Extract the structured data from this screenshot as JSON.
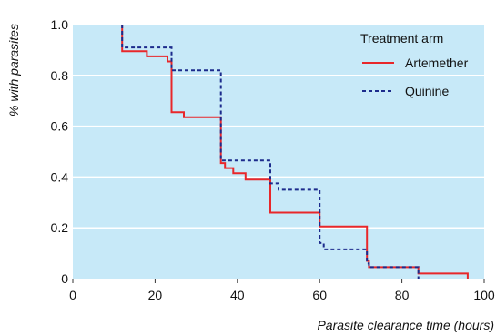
{
  "chart_data": {
    "type": "line",
    "title": "",
    "xlabel": "Parasite clearance time (hours)",
    "ylabel": "% with parasites",
    "xlim": [
      0,
      100
    ],
    "ylim": [
      0,
      1.0
    ],
    "x_ticks": [
      0,
      20,
      40,
      60,
      80,
      100
    ],
    "y_ticks": [
      0,
      0.2,
      0.4,
      0.6,
      0.8,
      1.0
    ],
    "x_tick_labels": [
      "0",
      "20",
      "40",
      "60",
      "80",
      "100"
    ],
    "y_tick_labels": [
      "0",
      "0.2",
      "0.4",
      "0.6",
      "0.8",
      "1.0"
    ],
    "grid": "horizontal",
    "plot_background": "#c7e9f8",
    "legend": {
      "title": "Treatment arm",
      "position": "top-right"
    },
    "step": true,
    "series": [
      {
        "name": "Artemether",
        "color": "#e8272a",
        "dash": "solid",
        "points": [
          [
            12,
            1.0
          ],
          [
            12,
            0.895
          ],
          [
            18,
            0.875
          ],
          [
            23,
            0.855
          ],
          [
            24,
            0.655
          ],
          [
            27,
            0.635
          ],
          [
            36,
            0.455
          ],
          [
            37,
            0.435
          ],
          [
            39,
            0.415
          ],
          [
            42,
            0.39
          ],
          [
            48,
            0.26
          ],
          [
            60,
            0.205
          ],
          [
            71.5,
            0.07
          ],
          [
            72,
            0.045
          ],
          [
            84,
            0.02
          ],
          [
            96,
            0.0
          ]
        ]
      },
      {
        "name": "Quinine",
        "color": "#1c2b8c",
        "dash": "dashed",
        "points": [
          [
            12,
            1.0
          ],
          [
            12,
            0.91
          ],
          [
            24,
            0.82
          ],
          [
            36,
            0.465
          ],
          [
            48,
            0.375
          ],
          [
            50,
            0.35
          ],
          [
            60,
            0.14
          ],
          [
            61,
            0.115
          ],
          [
            71.5,
            0.06
          ],
          [
            72,
            0.045
          ],
          [
            84,
            0.0
          ]
        ]
      }
    ]
  }
}
